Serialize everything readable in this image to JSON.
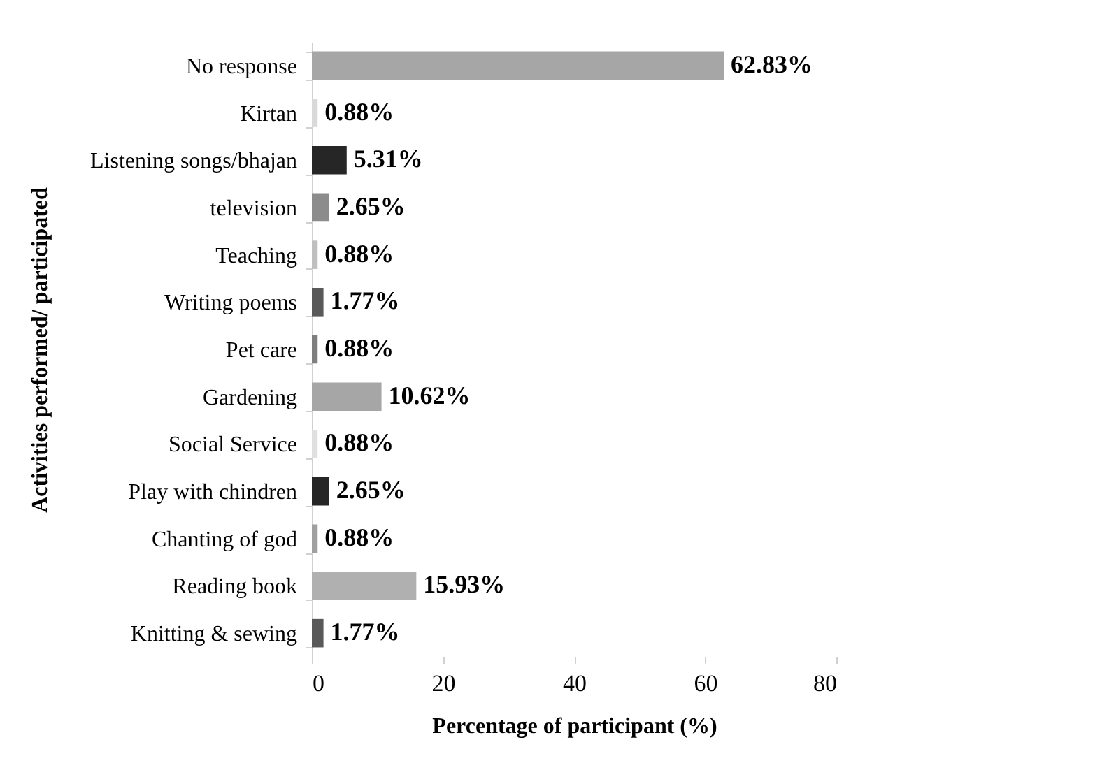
{
  "chart_data": {
    "type": "bar",
    "orientation": "horizontal",
    "xlabel": "Percentage of participant (%)",
    "ylabel": "Activities performed/ participated",
    "categories": [
      "No response",
      "Kirtan",
      "Listening songs/bhajan",
      "television",
      "Teaching",
      "Writing poems",
      "Pet care",
      "Gardening",
      "Social Service",
      "Play with chindren",
      "Chanting of god",
      "Reading book",
      "Knitting & sewing"
    ],
    "values": [
      62.83,
      0.88,
      5.31,
      2.65,
      0.88,
      1.77,
      0.88,
      10.62,
      0.88,
      2.65,
      0.88,
      15.93,
      1.77
    ],
    "value_labels": [
      "62.83%",
      "0.88%",
      "5.31%",
      "2.65%",
      "0.88%",
      "1.77%",
      "0.88%",
      "10.62%",
      "0.88%",
      "2.65%",
      "0.88%",
      "15.93%",
      "1.77%"
    ],
    "colors": [
      "#a6a6a6",
      "#d9d9d9",
      "#262626",
      "#8c8c8c",
      "#bfbfbf",
      "#595959",
      "#7f7f7f",
      "#a6a6a6",
      "#e0e0e0",
      "#262626",
      "#a0a0a0",
      "#b0b0b0",
      "#595959"
    ],
    "xlim": [
      0,
      80
    ],
    "xticks": [
      0,
      20,
      40,
      60,
      80
    ],
    "grid": false
  }
}
